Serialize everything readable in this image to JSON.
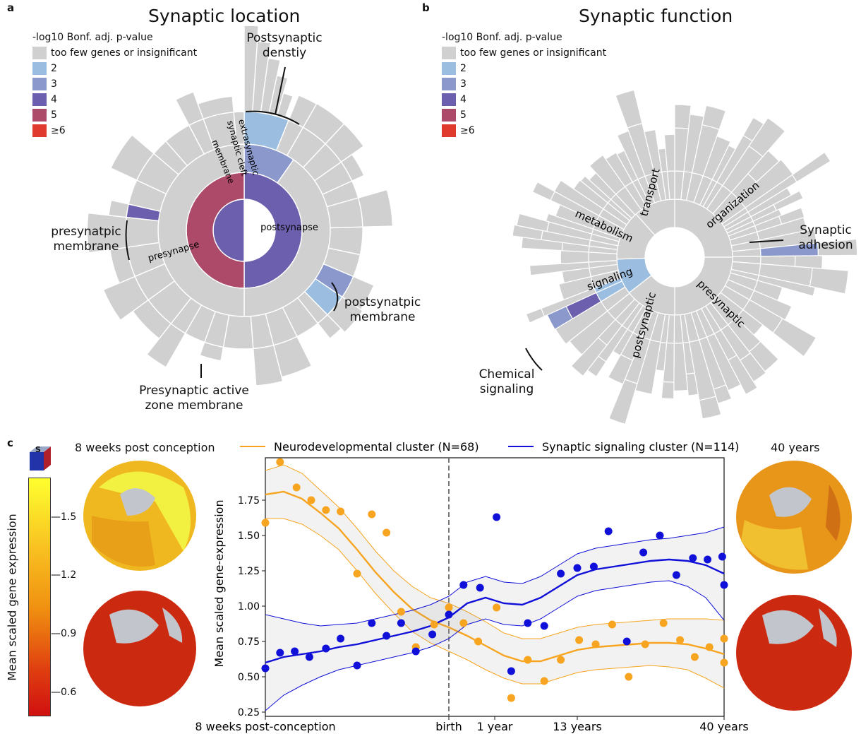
{
  "colors": {
    "grey": "#d0d0d0",
    "c2": "#9bbddf",
    "c3": "#8a98cc",
    "c4": "#6c5fae",
    "c5": "#ad4a6a",
    "c6": "#e03a2f",
    "orange": "#f7a520",
    "blue": "#1010d8"
  },
  "panel_a": {
    "letter": "a",
    "title": "Synaptic location",
    "legend_title": "-log10 Bonf. adj. p-value",
    "legend": [
      "too few genes or insignificant",
      "2",
      "3",
      "4",
      "5",
      "≥6"
    ],
    "annotations": {
      "psd_1": "Postsynaptic",
      "psd_2": "denstiy",
      "pre_mem_1": "presynatpic",
      "pre_mem_2": "membrane",
      "post_mem_1": "postsynatpic",
      "post_mem_2": "membrane",
      "az_1": "Presynaptic active",
      "az_2": "zone membrane"
    },
    "labels": {
      "postsynapse": "postsynapse",
      "presynapse": "presynapse",
      "extra": "extrasynaptic",
      "cleft": "synaptic cleft",
      "membrane": "membrane"
    }
  },
  "panel_b": {
    "letter": "b",
    "title": "Synaptic function",
    "legend_title": "-log10 Bonf. adj. p-value",
    "legend": [
      "too few genes or insignificant",
      "2",
      "3",
      "4",
      "5",
      "≥6"
    ],
    "annotations": {
      "adh_1": "Synaptic",
      "adh_2": "adhesion",
      "chem_1": "Chemical",
      "chem_2": "signaling"
    },
    "labels": {
      "transport": "transport",
      "organization": "organization",
      "metabolism": "metabolism",
      "signaling": "signaling",
      "postsynaptic": "postsynaptic",
      "presynaptic": "presynaptic"
    }
  },
  "panel_c": {
    "letter": "c",
    "brain_left": "8 weeks post conception",
    "brain_right": "40 years",
    "colorbar_label": "Mean scaled gene expression",
    "colorbar_ticks": [
      "1.5",
      "1.2",
      "0.9",
      "0.6"
    ],
    "cube_label": "S"
  },
  "chart_data": {
    "type": "scatter",
    "xlabel": "",
    "ylabel": "Mean scaled gene-expression",
    "ylim": [
      0.22,
      2.05
    ],
    "yticks": [
      "0.25",
      "0.50",
      "0.75",
      "1.00",
      "1.25",
      "1.50",
      "1.75"
    ],
    "xtick_labels": [
      "8 weeks post-conception",
      "birth",
      "1 year",
      "13 years",
      "40 years"
    ],
    "xtick_positions": [
      0,
      10,
      12.5,
      17,
      25
    ],
    "xlim": [
      0,
      25
    ],
    "birth_line_x": 10,
    "series": [
      {
        "name": "Neurodevelopmental cluster (N=68)",
        "points": [
          [
            0,
            1.59
          ],
          [
            0.8,
            2.02
          ],
          [
            1.7,
            1.84
          ],
          [
            2.5,
            1.75
          ],
          [
            3.3,
            1.68
          ],
          [
            4.1,
            1.67
          ],
          [
            5,
            1.23
          ],
          [
            5.8,
            1.65
          ],
          [
            6.6,
            1.52
          ],
          [
            7.4,
            0.96
          ],
          [
            8.2,
            0.71
          ],
          [
            9.2,
            0.87
          ],
          [
            10,
            0.99
          ],
          [
            10.8,
            0.88
          ],
          [
            11.6,
            0.75
          ],
          [
            12.6,
            0.99
          ],
          [
            13.4,
            0.35
          ],
          [
            14.3,
            0.62
          ],
          [
            15.2,
            0.47
          ],
          [
            16.1,
            0.62
          ],
          [
            17.1,
            0.76
          ],
          [
            18,
            0.73
          ],
          [
            18.9,
            0.87
          ],
          [
            19.8,
            0.5
          ],
          [
            20.7,
            0.73
          ],
          [
            21.7,
            0.88
          ],
          [
            22.6,
            0.76
          ],
          [
            23.4,
            0.64
          ],
          [
            24.2,
            0.71
          ],
          [
            25,
            0.77
          ],
          [
            25.5,
            0.6
          ]
        ],
        "fit": [
          [
            0,
            1.79
          ],
          [
            1,
            1.81
          ],
          [
            2,
            1.76
          ],
          [
            3,
            1.66
          ],
          [
            4,
            1.55
          ],
          [
            5,
            1.4
          ],
          [
            6,
            1.24
          ],
          [
            7,
            1.1
          ],
          [
            8,
            0.98
          ],
          [
            9,
            0.9
          ],
          [
            10,
            0.85
          ],
          [
            11,
            0.79
          ],
          [
            12,
            0.72
          ],
          [
            13,
            0.65
          ],
          [
            14,
            0.61
          ],
          [
            15,
            0.61
          ],
          [
            16,
            0.65
          ],
          [
            17,
            0.69
          ],
          [
            18,
            0.71
          ],
          [
            19,
            0.72
          ],
          [
            20,
            0.73
          ],
          [
            21,
            0.74
          ],
          [
            22,
            0.74
          ],
          [
            23,
            0.73
          ],
          [
            24,
            0.7
          ],
          [
            25,
            0.66
          ]
        ],
        "band": [
          0.17,
          0.19,
          0.18,
          0.16,
          0.15,
          0.15,
          0.15,
          0.15,
          0.16,
          0.16,
          0.17,
          0.17,
          0.17,
          0.16,
          0.16,
          0.16,
          0.16,
          0.16,
          0.16,
          0.16,
          0.16,
          0.16,
          0.17,
          0.18,
          0.21,
          0.24
        ]
      },
      {
        "name": "Synaptic signaling cluster (N=114)",
        "points": [
          [
            0,
            0.56
          ],
          [
            0.8,
            0.67
          ],
          [
            1.6,
            0.68
          ],
          [
            2.4,
            0.64
          ],
          [
            3.3,
            0.7
          ],
          [
            4.1,
            0.77
          ],
          [
            5,
            0.58
          ],
          [
            5.8,
            0.88
          ],
          [
            6.6,
            0.79
          ],
          [
            7.4,
            0.88
          ],
          [
            8.2,
            0.68
          ],
          [
            9.1,
            0.8
          ],
          [
            10,
            0.94
          ],
          [
            10.8,
            1.15
          ],
          [
            11.7,
            1.13
          ],
          [
            12.6,
            1.63
          ],
          [
            13.4,
            0.54
          ],
          [
            14.3,
            0.88
          ],
          [
            15.2,
            0.86
          ],
          [
            16.1,
            1.23
          ],
          [
            17,
            1.27
          ],
          [
            17.9,
            1.28
          ],
          [
            18.7,
            1.53
          ],
          [
            19.7,
            0.75
          ],
          [
            20.6,
            1.38
          ],
          [
            21.5,
            1.5
          ],
          [
            22.4,
            1.22
          ],
          [
            23.3,
            1.34
          ],
          [
            24.1,
            1.33
          ],
          [
            24.9,
            1.35
          ],
          [
            25.5,
            1.15
          ]
        ],
        "fit": [
          [
            0,
            0.6
          ],
          [
            1,
            0.64
          ],
          [
            2,
            0.66
          ],
          [
            3,
            0.68
          ],
          [
            4,
            0.71
          ],
          [
            5,
            0.73
          ],
          [
            6,
            0.76
          ],
          [
            7,
            0.79
          ],
          [
            8,
            0.82
          ],
          [
            9,
            0.86
          ],
          [
            10,
            0.92
          ],
          [
            11,
            1.02
          ],
          [
            12,
            1.06
          ],
          [
            13,
            1.02
          ],
          [
            14,
            1.01
          ],
          [
            15,
            1.06
          ],
          [
            16,
            1.14
          ],
          [
            17,
            1.22
          ],
          [
            18,
            1.26
          ],
          [
            19,
            1.28
          ],
          [
            20,
            1.3
          ],
          [
            21,
            1.32
          ],
          [
            22,
            1.33
          ],
          [
            23,
            1.32
          ],
          [
            24,
            1.29
          ],
          [
            25,
            1.23
          ]
        ],
        "band": [
          0.34,
          0.27,
          0.22,
          0.18,
          0.16,
          0.15,
          0.15,
          0.15,
          0.15,
          0.15,
          0.15,
          0.15,
          0.15,
          0.15,
          0.15,
          0.15,
          0.15,
          0.15,
          0.15,
          0.15,
          0.15,
          0.15,
          0.15,
          0.18,
          0.23,
          0.33
        ]
      }
    ]
  }
}
